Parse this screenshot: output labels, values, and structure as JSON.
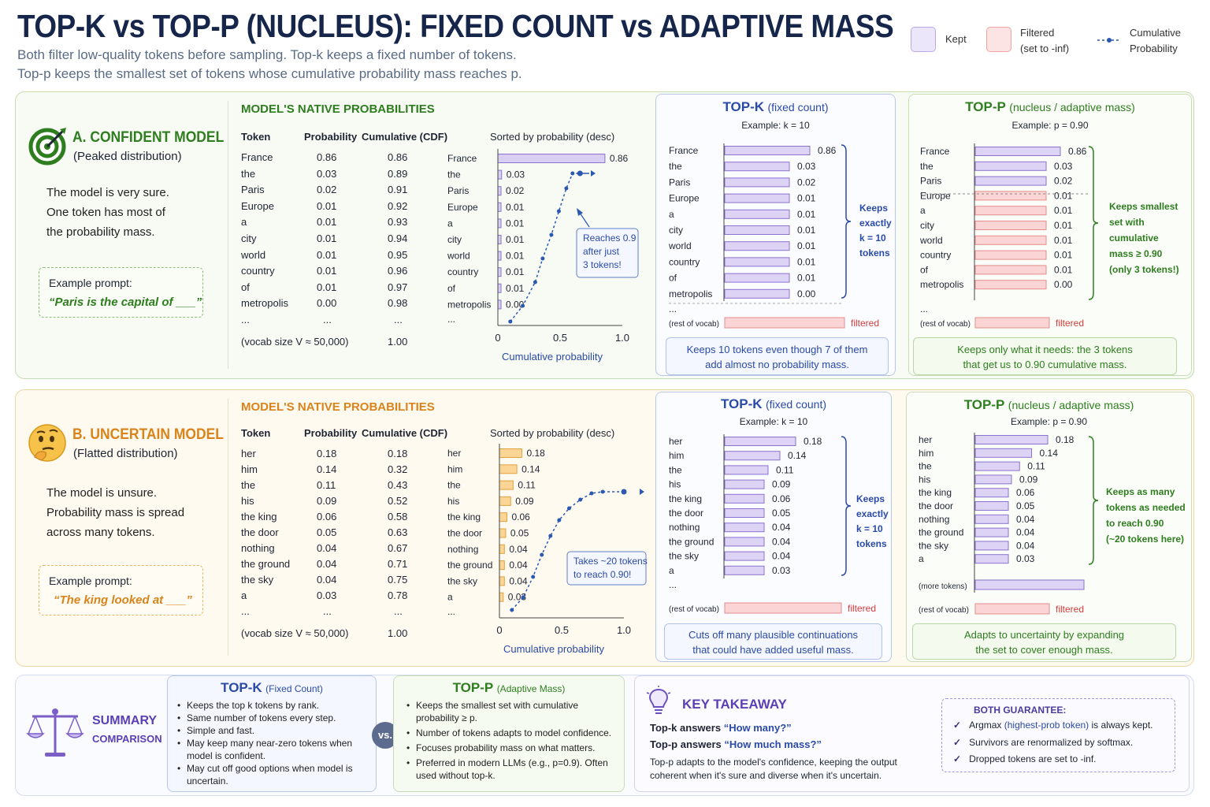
{
  "title": "TOP-K vs TOP-P (NUCLEUS): FIXED COUNT vs ADAPTIVE MASS",
  "subtitle_1": "Both filter low-quality tokens before sampling. Top-k keeps a fixed number of tokens.",
  "subtitle_2": "Top-p keeps the smallest set of tokens whose cumulative probability mass reaches p.",
  "legend": {
    "kept": "Kept",
    "filtered_1": "Filtered",
    "filtered_2": "(set to -inf)",
    "cumulative_1": "Cumulative",
    "cumulative_2": "Probability"
  },
  "colors": {
    "kept": "#b9a8e4",
    "filtered": "#f6b3b3",
    "cdf": "#2b58b0",
    "confident": "#2e7d1f",
    "uncertain": "#d9831a",
    "topk": "#2a4aa8",
    "topp": "#2e7d1f"
  },
  "common": {
    "native_probs": "MODEL'S NATIVE PROBABILITIES",
    "col_token": "Token",
    "col_prob": "Probability",
    "col_cdf": "Cumulative (CDF)",
    "sorted_title": "Sorted by probability (desc)",
    "ellipsis": "...",
    "vocab": "(vocab size V ≈ 50,000)",
    "vocab_total": "1.00",
    "cdf_label": "Cumulative probability",
    "ticks": [
      "0",
      "0.5",
      "1.0"
    ],
    "topk_title": "TOP-K",
    "topk_paren": "(fixed count)",
    "topk_example": "Example: k = 10",
    "topp_title": "TOP-P",
    "topp_paren": "(nucleus / adaptive mass)",
    "topp_example": "Example: p = 0.90",
    "rest": "(rest of vocab)",
    "filtered": "filtered"
  },
  "a": {
    "heading": "A. CONFIDENT MODEL",
    "sub": "(Peaked distribution)",
    "desc": [
      "The model is very sure.",
      "One token has most of",
      "the probability mass."
    ],
    "prompt_label": "Example prompt:",
    "prompt": "“Paris is the capital of ___”",
    "tokens": [
      "France",
      "the",
      "Paris",
      "Europe",
      "a",
      "city",
      "world",
      "country",
      "of",
      "metropolis"
    ],
    "probs": [
      "0.86",
      "0.03",
      "0.02",
      "0.01",
      "0.01",
      "0.01",
      "0.01",
      "0.01",
      "0.01",
      "0.00"
    ],
    "cdf": [
      "0.86",
      "0.89",
      "0.91",
      "0.92",
      "0.93",
      "0.94",
      "0.95",
      "0.96",
      "0.97",
      "0.98"
    ],
    "sorted_labels": [
      "0.86",
      "0.03",
      "0.02",
      "0.01",
      "0.01",
      "0.01",
      "0.01",
      "0.01",
      "0.01",
      "0.00"
    ],
    "callout": [
      "Reaches 0.9",
      "after just",
      "3 tokens!"
    ],
    "topk_labels": [
      "0.86",
      "0.03",
      "0.02",
      "0.01",
      "0.01",
      "0.01",
      "0.01",
      "0.01",
      "0.01",
      "0.00"
    ],
    "topk_brace": [
      "Keeps",
      "exactly",
      "k = 10",
      "tokens"
    ],
    "topk_note": [
      "Keeps 10 tokens even though 7 of them",
      "add almost no probability mass."
    ],
    "topp_brace": [
      "Keeps smallest",
      "set with",
      "cumulative",
      "mass ≥ 0.90",
      "(only 3 tokens!)"
    ],
    "topp_note": [
      "Keeps only what it needs: the 3 tokens",
      "that get us to 0.90 cumulative mass."
    ]
  },
  "b": {
    "heading": "B. UNCERTAIN MODEL",
    "sub": "(Flatted distribution)",
    "desc": [
      "The model is unsure.",
      "Probability mass is spread",
      "across many tokens."
    ],
    "prompt_label": "Example prompt:",
    "prompt": "“The king looked at ___”",
    "tokens": [
      "her",
      "him",
      "the",
      "his",
      "the king",
      "the door",
      "nothing",
      "the ground",
      "the sky",
      "a"
    ],
    "probs": [
      "0.18",
      "0.14",
      "0.11",
      "0.09",
      "0.06",
      "0.05",
      "0.04",
      "0.04",
      "0.04",
      "0.03"
    ],
    "cdf": [
      "0.18",
      "0.32",
      "0.43",
      "0.52",
      "0.58",
      "0.63",
      "0.67",
      "0.71",
      "0.75",
      "0.78"
    ],
    "callout": [
      "Takes ~20 tokens",
      "to reach 0.90!"
    ],
    "topk_brace": [
      "Keeps",
      "exactly",
      "k = 10",
      "tokens"
    ],
    "topk_note": [
      "Cuts off many plausible continuations",
      "that could have added useful mass."
    ],
    "more_tokens": "(more tokens)",
    "topp_brace": [
      "Keeps as many",
      "tokens as needed",
      "to reach 0.90",
      "(~20 tokens here)"
    ],
    "topp_note": [
      "Adapts to uncertainty by expanding",
      "the set to cover enough mass."
    ]
  },
  "chart_data": [
    {
      "type": "bar",
      "categories": [
        "France",
        "the",
        "Paris",
        "Europe",
        "a",
        "city",
        "world",
        "country",
        "of",
        "metropolis"
      ],
      "values": [
        0.86,
        0.03,
        0.02,
        0.01,
        0.01,
        0.01,
        0.01,
        0.01,
        0.01,
        0.0
      ],
      "title": "Sorted by probability (desc)",
      "xlabel": "Cumulative probability",
      "xlim": [
        0,
        1.0
      ]
    },
    {
      "type": "line",
      "name": "Cumulative",
      "x": [
        0.0,
        0.1,
        0.2,
        0.3,
        0.4,
        0.5,
        0.6,
        0.7,
        0.8,
        0.86,
        0.89,
        0.91
      ],
      "xlim": [
        0,
        1.0
      ]
    },
    {
      "type": "bar",
      "categories": [
        "her",
        "him",
        "the",
        "his",
        "the king",
        "the door",
        "nothing",
        "the ground",
        "the sky",
        "a"
      ],
      "values": [
        0.18,
        0.14,
        0.11,
        0.09,
        0.06,
        0.05,
        0.04,
        0.04,
        0.04,
        0.03
      ],
      "title": "Sorted by probability (desc)",
      "xlabel": "Cumulative probability",
      "xlim": [
        0,
        1.0
      ]
    }
  ],
  "summary": {
    "label_1": "SUMMARY",
    "label_2": "COMPARISON",
    "topk_title": "TOP-K",
    "topk_paren": "(Fixed Count)",
    "topk_points": [
      "Keeps the top k tokens by rank.",
      "Same number of tokens every step.",
      "Simple and fast.",
      "May keep many near-zero tokens when model is confident.",
      "May cut off good options when model is uncertain."
    ],
    "vs": "vs.",
    "topp_title": "TOP-P",
    "topp_paren": "(Adaptive Mass)",
    "topp_points": [
      "Keeps the smallest set with cumulative probability ≥ p.",
      "Number of tokens adapts to model confidence.",
      "Focuses probability mass on what matters.",
      "Preferred in modern LLMs (e.g., p=0.9). Often used without top-k."
    ],
    "takeaway_title": "KEY TAKEAWAY",
    "tk1_a": "Top-k answers ",
    "tk1_b": "“How many?”",
    "tk2_a": "Top-p answers ",
    "tk2_b": "“How much mass?”",
    "tk3": "Top-p adapts to the model's confidence, keeping the output coherent when it's sure and diverse when it's uncertain.",
    "guarantee_title": "BOTH GUARANTEE:",
    "g1_a": "Argmax ",
    "g1_b": "(highest-prob token)",
    "g1_c": " is always kept.",
    "g2": "Survivors are renormalized by softmax.",
    "g3": "Dropped tokens are set to -inf."
  }
}
